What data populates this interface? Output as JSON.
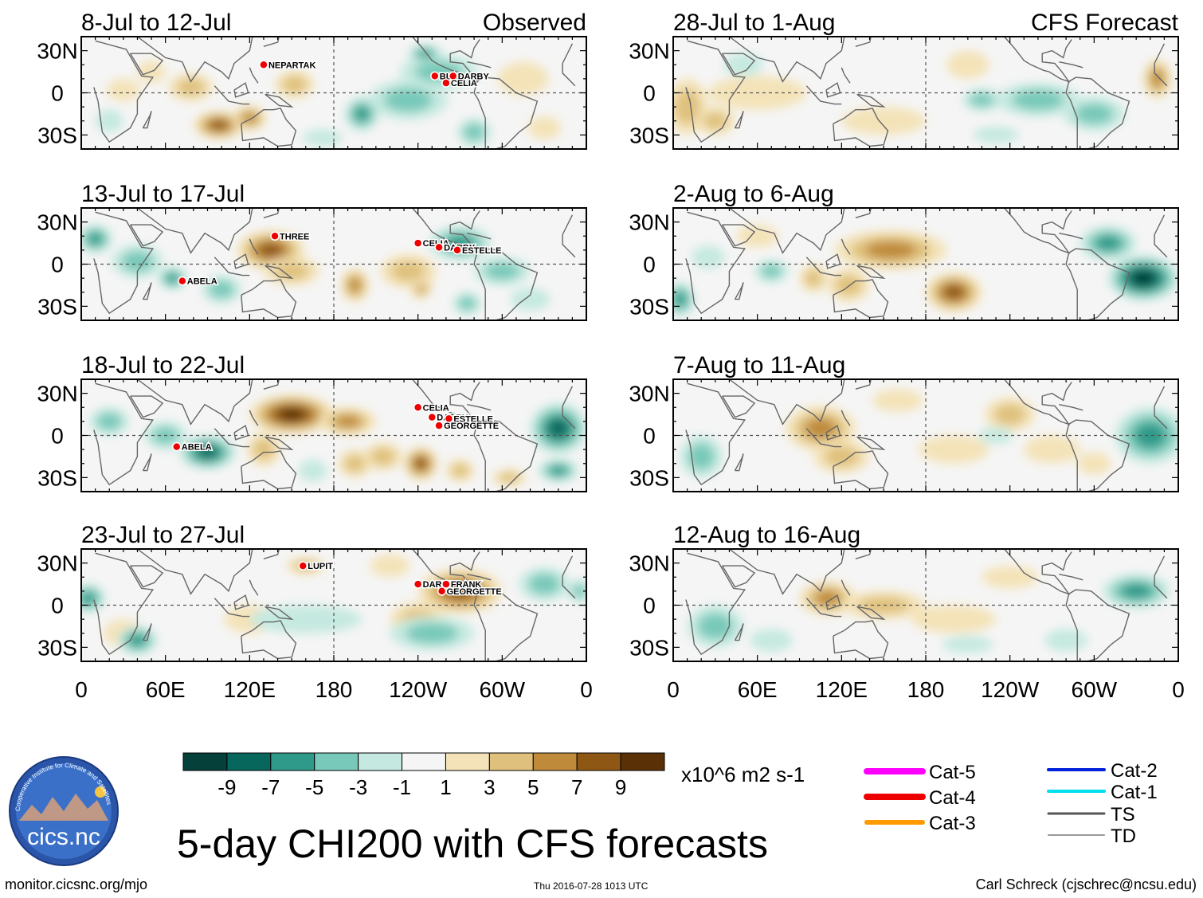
{
  "chart_data": {
    "type": "heatmap",
    "title": "5-day CHI200 with CFS forecasts",
    "units": "x10^6 m2 s-1",
    "x_ticks": [
      "0",
      "60E",
      "120E",
      "180",
      "120W",
      "60W",
      "0"
    ],
    "y_ticks": [
      "30N",
      "0",
      "30S"
    ],
    "colorbar": {
      "labels": [
        "-9",
        "-7",
        "-5",
        "-3",
        "-1",
        "1",
        "3",
        "5",
        "7",
        "9"
      ],
      "colors": [
        "#06403a",
        "#08675c",
        "#2f9a89",
        "#78c9b9",
        "#c5e9e0",
        "#f5f5f5",
        "#f4e3b8",
        "#dfc17d",
        "#bf8a3a",
        "#8f5714",
        "#5a3006"
      ]
    },
    "column_labels": {
      "observed": "Observed",
      "forecast": "CFS Forecast"
    },
    "panels": [
      {
        "id": "obs1",
        "period": "8-Jul to 12-Jul",
        "storms": [
          {
            "name": "NEPARTAK",
            "lon": 130,
            "lat": 20
          },
          {
            "name": "BLAS",
            "lon": -108,
            "lat": 12
          },
          {
            "name": "DARBY",
            "lon": -95,
            "lat": 12
          },
          {
            "name": "CELIA",
            "lon": -100,
            "lat": 7
          }
        ],
        "blobs": [
          [
            98,
            -23,
            18,
            10,
            7
          ],
          [
            120,
            -18,
            12,
            9,
            5
          ],
          [
            152,
            6,
            14,
            10,
            4
          ],
          [
            78,
            4,
            16,
            10,
            3
          ],
          [
            30,
            2,
            12,
            8,
            2
          ],
          [
            50,
            15,
            10,
            8,
            2
          ],
          [
            20,
            -20,
            10,
            8,
            -2
          ],
          [
            200,
            -15,
            12,
            12,
            -6
          ],
          [
            233,
            -5,
            28,
            14,
            -4
          ],
          [
            255,
            15,
            28,
            12,
            -4
          ],
          [
            -115,
            28,
            12,
            6,
            -5
          ],
          [
            -45,
            10,
            18,
            12,
            2
          ],
          [
            -30,
            -25,
            12,
            8,
            2
          ],
          [
            -80,
            -28,
            12,
            10,
            -3
          ],
          [
            172,
            -32,
            14,
            6,
            -2
          ]
        ]
      },
      {
        "id": "obs2",
        "period": "13-Jul to 17-Jul",
        "storms": [
          {
            "name": "THREE",
            "lon": 138,
            "lat": 20
          },
          {
            "name": "ABELA",
            "lon": 72,
            "lat": -12
          },
          {
            "name": "CELIA",
            "lon": -120,
            "lat": 15
          },
          {
            "name": "DARBY",
            "lon": -105,
            "lat": 12
          },
          {
            "name": "ESTELLE",
            "lon": -92,
            "lat": 10
          }
        ],
        "blobs": [
          [
            135,
            10,
            24,
            14,
            7
          ],
          [
            150,
            -5,
            20,
            10,
            4
          ],
          [
            195,
            -15,
            10,
            12,
            6
          ],
          [
            242,
            -15,
            8,
            10,
            5
          ],
          [
            233,
            -5,
            20,
            12,
            3
          ],
          [
            275,
            -28,
            10,
            8,
            -3
          ],
          [
            40,
            2,
            18,
            12,
            -4
          ],
          [
            10,
            18,
            12,
            10,
            -5
          ],
          [
            65,
            -10,
            10,
            8,
            -5
          ],
          [
            100,
            -18,
            14,
            10,
            -3
          ],
          [
            -90,
            15,
            22,
            12,
            -5
          ],
          [
            -60,
            -5,
            20,
            10,
            -3
          ],
          [
            -40,
            -25,
            14,
            8,
            -2
          ]
        ]
      },
      {
        "id": "obs3",
        "period": "18-Jul to 22-Jul",
        "storms": [
          {
            "name": "CELIA",
            "lon": -120,
            "lat": 20
          },
          {
            "name": "DARBY",
            "lon": -110,
            "lat": 13
          },
          {
            "name": "ESTELLE",
            "lon": -98,
            "lat": 12
          },
          {
            "name": "GEORGETTE",
            "lon": -105,
            "lat": 7
          },
          {
            "name": "ABELA",
            "lon": 68,
            "lat": -8
          }
        ],
        "blobs": [
          [
            150,
            15,
            30,
            14,
            9
          ],
          [
            190,
            10,
            20,
            10,
            5
          ],
          [
            130,
            -10,
            12,
            12,
            4
          ],
          [
            195,
            -20,
            12,
            10,
            4
          ],
          [
            242,
            -20,
            12,
            12,
            7
          ],
          [
            215,
            -15,
            14,
            10,
            3
          ],
          [
            270,
            -25,
            10,
            8,
            4
          ],
          [
            -55,
            -30,
            12,
            6,
            3
          ],
          [
            90,
            -12,
            20,
            12,
            -8
          ],
          [
            60,
            0,
            15,
            10,
            -4
          ],
          [
            -20,
            5,
            20,
            18,
            -7
          ],
          [
            -20,
            -25,
            14,
            8,
            -6
          ],
          [
            20,
            10,
            14,
            10,
            -3
          ],
          [
            165,
            -25,
            10,
            8,
            -2
          ]
        ]
      },
      {
        "id": "obs4",
        "period": "23-Jul to 27-Jul",
        "storms": [
          {
            "name": "LUPIT",
            "lon": 158,
            "lat": 28
          },
          {
            "name": "DARBY",
            "lon": -120,
            "lat": 15
          },
          {
            "name": "FRANK",
            "lon": -100,
            "lat": 15
          },
          {
            "name": "GEORGETTE",
            "lon": -103,
            "lat": 10
          }
        ],
        "blobs": [
          [
            270,
            10,
            30,
            16,
            7
          ],
          [
            240,
            -10,
            20,
            12,
            3
          ],
          [
            160,
            28,
            14,
            6,
            3
          ],
          [
            220,
            28,
            14,
            8,
            2
          ],
          [
            30,
            -20,
            14,
            10,
            2
          ],
          [
            120,
            -10,
            18,
            10,
            2
          ],
          [
            5,
            5,
            12,
            10,
            -6
          ],
          [
            40,
            -25,
            14,
            10,
            -6
          ],
          [
            160,
            -10,
            40,
            10,
            -2
          ],
          [
            -110,
            -20,
            30,
            12,
            -3
          ],
          [
            -30,
            15,
            18,
            12,
            -3
          ],
          [
            -5,
            10,
            8,
            8,
            -4
          ]
        ]
      },
      {
        "id": "cfs1",
        "period": "28-Jul to 1-Aug",
        "storms": [],
        "blobs": [
          [
            10,
            -10,
            15,
            20,
            4
          ],
          [
            -15,
            10,
            10,
            14,
            5
          ],
          [
            60,
            0,
            35,
            12,
            2
          ],
          [
            30,
            -20,
            14,
            10,
            3
          ],
          [
            150,
            -20,
            30,
            10,
            2
          ],
          [
            210,
            20,
            15,
            10,
            2
          ],
          [
            260,
            -5,
            30,
            12,
            -3
          ],
          [
            -60,
            -15,
            22,
            12,
            -4
          ],
          [
            220,
            -5,
            14,
            8,
            -3
          ],
          [
            50,
            20,
            14,
            8,
            -2
          ],
          [
            230,
            -30,
            16,
            6,
            -2
          ]
        ]
      },
      {
        "id": "cfs2",
        "period": "2-Aug to 6-Aug",
        "storms": [],
        "blobs": [
          [
            155,
            10,
            40,
            14,
            6
          ],
          [
            200,
            -20,
            20,
            14,
            7
          ],
          [
            125,
            -15,
            15,
            12,
            4
          ],
          [
            100,
            -10,
            10,
            10,
            3
          ],
          [
            60,
            20,
            15,
            8,
            2
          ],
          [
            -25,
            -10,
            25,
            16,
            -9
          ],
          [
            -50,
            15,
            20,
            12,
            -6
          ],
          [
            5,
            -25,
            10,
            12,
            -6
          ],
          [
            70,
            -5,
            12,
            8,
            -3
          ],
          [
            25,
            5,
            12,
            8,
            -2
          ]
        ]
      },
      {
        "id": "cfs3",
        "period": "7-Aug to 11-Aug",
        "storms": [],
        "blobs": [
          [
            105,
            5,
            25,
            16,
            5
          ],
          [
            120,
            -15,
            20,
            12,
            3
          ],
          [
            200,
            -10,
            25,
            10,
            2
          ],
          [
            240,
            15,
            18,
            12,
            3
          ],
          [
            270,
            -10,
            20,
            10,
            2
          ],
          [
            -20,
            0,
            25,
            20,
            -5
          ],
          [
            20,
            -15,
            15,
            15,
            -3
          ],
          [
            230,
            0,
            12,
            6,
            -2
          ],
          [
            -60,
            -20,
            12,
            8,
            2
          ],
          [
            160,
            25,
            18,
            8,
            2
          ]
        ]
      },
      {
        "id": "cfs4",
        "period": "12-Aug to 16-Aug",
        "storms": [],
        "blobs": [
          [
            110,
            5,
            20,
            12,
            5
          ],
          [
            150,
            0,
            30,
            10,
            3
          ],
          [
            200,
            -10,
            30,
            10,
            2
          ],
          [
            240,
            20,
            20,
            8,
            1
          ],
          [
            -30,
            10,
            24,
            12,
            -5
          ],
          [
            30,
            -15,
            20,
            15,
            -3
          ],
          [
            70,
            -25,
            15,
            8,
            -2
          ],
          [
            210,
            -28,
            18,
            6,
            -2
          ],
          [
            -80,
            -25,
            15,
            8,
            -1
          ]
        ]
      }
    ],
    "legend_tracks": [
      {
        "label": "Cat-5",
        "color": "#ff00ff",
        "width": 8
      },
      {
        "label": "Cat-4",
        "color": "#ee0000",
        "width": 8
      },
      {
        "label": "Cat-3",
        "color": "#ff9900",
        "width": 6
      },
      {
        "label": "Cat-2",
        "color": "#0022dd",
        "width": 4
      },
      {
        "label": "Cat-1",
        "color": "#00ddee",
        "width": 4
      },
      {
        "label": "TS",
        "color": "#555555",
        "width": 3
      },
      {
        "label": "TD",
        "color": "#999999",
        "width": 2
      }
    ]
  },
  "logo": {
    "text": "cics.nc",
    "ring_text": "Cooperative Institute for Climate and Satellites"
  },
  "footer": {
    "left": "monitor.cicsnc.org/mjo",
    "middle": "Thu 2016-07-28 1013 UTC",
    "right": "Carl Schreck (cjschrec@ncsu.edu)"
  }
}
